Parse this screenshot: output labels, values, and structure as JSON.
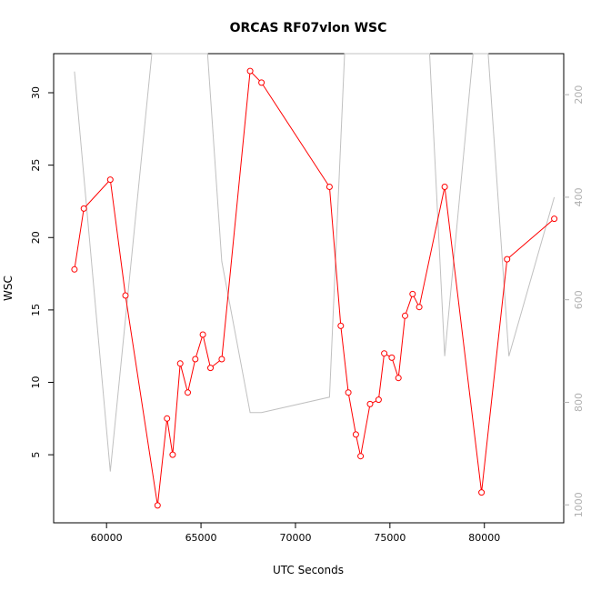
{
  "chart_data": {
    "type": "line",
    "title": "ORCAS RF07vlon WSC",
    "xlabel": "UTC Seconds",
    "ylabel": "WSC",
    "xlim": [
      57200,
      84200
    ],
    "ylim": [
      0.3,
      32.7
    ],
    "y2lim": [
      1035,
      120
    ],
    "y2_reversed": true,
    "x_ticks": [
      60000,
      65000,
      70000,
      75000,
      80000
    ],
    "x_tick_labels": [
      "60000",
      "65000",
      "70000",
      "75000",
      "80000"
    ],
    "y_ticks": [
      5,
      10,
      15,
      20,
      25,
      30
    ],
    "y_tick_labels": [
      "5",
      "10",
      "15",
      "20",
      "25",
      "30"
    ],
    "y2_ticks": [
      200,
      400,
      600,
      800,
      1000
    ],
    "y2_tick_labels": [
      "200",
      "400",
      "600",
      "800",
      "1000"
    ],
    "grid": false,
    "series": [
      {
        "color": "#ff0000",
        "marker": "circle",
        "axis": "left",
        "x": [
          58300,
          58800,
          60200,
          61000,
          62700,
          63200,
          63500,
          63900,
          64300,
          64700,
          65100,
          65500,
          66100,
          67600,
          68200,
          71800,
          72400,
          72800,
          73200,
          73450,
          73950,
          74400,
          74700,
          75100,
          75450,
          75800,
          76200,
          76550,
          77900,
          79850,
          81200,
          83700
        ],
        "values": [
          17.8,
          22.0,
          24.0,
          16.0,
          1.5,
          7.5,
          5.0,
          11.3,
          9.3,
          11.6,
          13.3,
          11.0,
          11.6,
          31.5,
          30.7,
          23.5,
          13.9,
          9.3,
          6.4,
          4.9,
          8.5,
          8.8,
          12.0,
          11.7,
          10.3,
          14.6,
          16.1,
          15.2,
          23.5,
          2.4,
          18.5,
          21.3
        ]
      },
      {
        "color": "#c0c0c0",
        "marker": "none",
        "axis": "right",
        "x": [
          58300,
          60200,
          62400,
          62700,
          65350,
          66100,
          67600,
          68200,
          71800,
          72600,
          73200,
          76600,
          77100,
          77900,
          79400,
          79800,
          80200,
          81300,
          83700
        ],
        "values": [
          155,
          935,
          120,
          100,
          100,
          525,
          820,
          820,
          790,
          120,
          100,
          100,
          120,
          710,
          120,
          100,
          120,
          710,
          400
        ]
      }
    ]
  }
}
